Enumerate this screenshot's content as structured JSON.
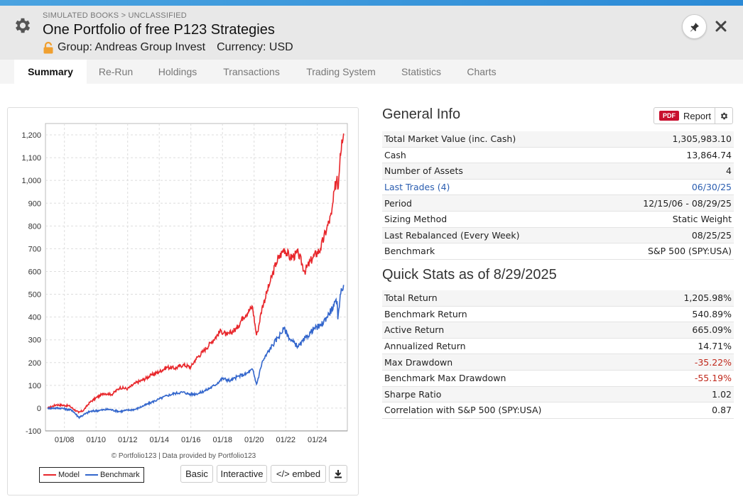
{
  "header": {
    "breadcrumb": "SIMULATED BOOKS > UNCLASSIFIED",
    "title": "One Portfolio of free P123 Strategies",
    "group": "Group: Andreas Group Invest",
    "currency": "Currency: USD"
  },
  "tabs": [
    {
      "label": "Summary",
      "active": true
    },
    {
      "label": "Re-Run"
    },
    {
      "label": "Holdings"
    },
    {
      "label": "Transactions"
    },
    {
      "label": "Trading System"
    },
    {
      "label": "Statistics"
    },
    {
      "label": "Charts"
    }
  ],
  "chart_data": {
    "type": "line",
    "title": "",
    "xlabel": "",
    "ylabel": "",
    "ylim": [
      -100,
      1250
    ],
    "yticks": [
      "1,200",
      "1,100",
      "1,000",
      "900",
      "800",
      "700",
      "600",
      "500",
      "400",
      "300",
      "200",
      "100",
      "0",
      "-100"
    ],
    "xticks": [
      "01/08",
      "01/10",
      "01/12",
      "01/14",
      "01/16",
      "01/18",
      "01/20",
      "01/22",
      "01/24"
    ],
    "grid": true,
    "legend": "bottom-left",
    "series": [
      {
        "name": "Model",
        "color": "#e8262b",
        "x": [
          2006.95,
          2007.5,
          2008.3,
          2008.9,
          2009.2,
          2009.6,
          2010,
          2010.5,
          2011,
          2011.5,
          2012,
          2012.5,
          2013,
          2013.5,
          2014,
          2014.5,
          2015,
          2015.5,
          2016,
          2016.3,
          2016.8,
          2017.3,
          2017.9,
          2018.3,
          2018.9,
          2019.3,
          2019.9,
          2020.15,
          2020.22,
          2020.5,
          2021,
          2021.4,
          2021.9,
          2022.3,
          2022.8,
          2023.2,
          2023.7,
          2024.2,
          2024.6,
          2024.9,
          2025.1,
          2025.25,
          2025.3,
          2025.45,
          2025.55,
          2025.66
        ],
        "values": [
          0,
          15,
          10,
          -20,
          -10,
          25,
          45,
          65,
          60,
          90,
          85,
          110,
          125,
          145,
          160,
          180,
          175,
          190,
          180,
          215,
          250,
          290,
          340,
          320,
          350,
          400,
          445,
          320,
          335,
          440,
          550,
          640,
          700,
          660,
          680,
          600,
          660,
          700,
          790,
          850,
          960,
          1020,
          960,
          1120,
          1180,
          1205.98
        ]
      },
      {
        "name": "Benchmark",
        "color": "#3366cc",
        "x": [
          2006.95,
          2007.8,
          2008.5,
          2008.9,
          2009.2,
          2009.6,
          2010.2,
          2010.8,
          2011.5,
          2011.9,
          2012.5,
          2013,
          2013.5,
          2014,
          2014.5,
          2015,
          2015.5,
          2016,
          2016.5,
          2017,
          2017.5,
          2018,
          2018.5,
          2019,
          2019.5,
          2019.9,
          2020.15,
          2020.22,
          2020.5,
          2021,
          2021.5,
          2021.9,
          2022.3,
          2022.8,
          2023.3,
          2023.8,
          2024.2,
          2024.6,
          2025.05,
          2025.25,
          2025.3,
          2025.45,
          2025.55,
          2025.66
        ],
        "values": [
          0,
          0,
          -10,
          -40,
          -30,
          -15,
          -10,
          -5,
          -15,
          -10,
          -5,
          10,
          25,
          40,
          55,
          65,
          70,
          60,
          65,
          80,
          100,
          130,
          120,
          140,
          150,
          170,
          105,
          120,
          200,
          260,
          310,
          350,
          300,
          270,
          310,
          350,
          360,
          400,
          450,
          470,
          390,
          500,
          520,
          540.89
        ]
      }
    ]
  },
  "chart_footer": {
    "credit": "© Portfolio123 | Data provided by Portfolio123",
    "legend_model": "Model",
    "legend_benchmark": "Benchmark",
    "btn_basic": "Basic",
    "btn_interactive": "Interactive",
    "btn_embed": "</> embed"
  },
  "general_info": {
    "title": "General Info",
    "report_badge": "PDF",
    "report_label": "Report",
    "rows": [
      {
        "label": "Total Market Value (inc. Cash)",
        "value": "1,305,983.10"
      },
      {
        "label": "Cash",
        "value": "13,864.74"
      },
      {
        "label": "Number of Assets",
        "value": "4"
      },
      {
        "label": "Last Trades (4)",
        "value": "06/30/25",
        "link": true
      },
      {
        "label": "Period",
        "value": "12/15/06 - 08/29/25"
      },
      {
        "label": "Sizing Method",
        "value": "Static Weight"
      },
      {
        "label": "Last Rebalanced (Every Week)",
        "value": "08/25/25"
      },
      {
        "label": "Benchmark",
        "value": "S&P 500 (SPY:USA)"
      }
    ]
  },
  "quick_stats": {
    "title": "Quick Stats as of 8/29/2025",
    "rows": [
      {
        "label": "Total Return",
        "value": "1,205.98%"
      },
      {
        "label": "Benchmark Return",
        "value": "540.89%"
      },
      {
        "label": "Active Return",
        "value": "665.09%"
      },
      {
        "label": "Annualized Return",
        "value": "14.71%"
      },
      {
        "label": "Max Drawdown",
        "value": "-35.22%",
        "negative": true
      },
      {
        "label": "Benchmark Max Drawdown",
        "value": "-55.19%",
        "negative": true
      },
      {
        "label": "Sharpe Ratio",
        "value": "1.02"
      },
      {
        "label": "Correlation with S&P 500 (SPY:USA)",
        "value": "0.87"
      }
    ]
  }
}
